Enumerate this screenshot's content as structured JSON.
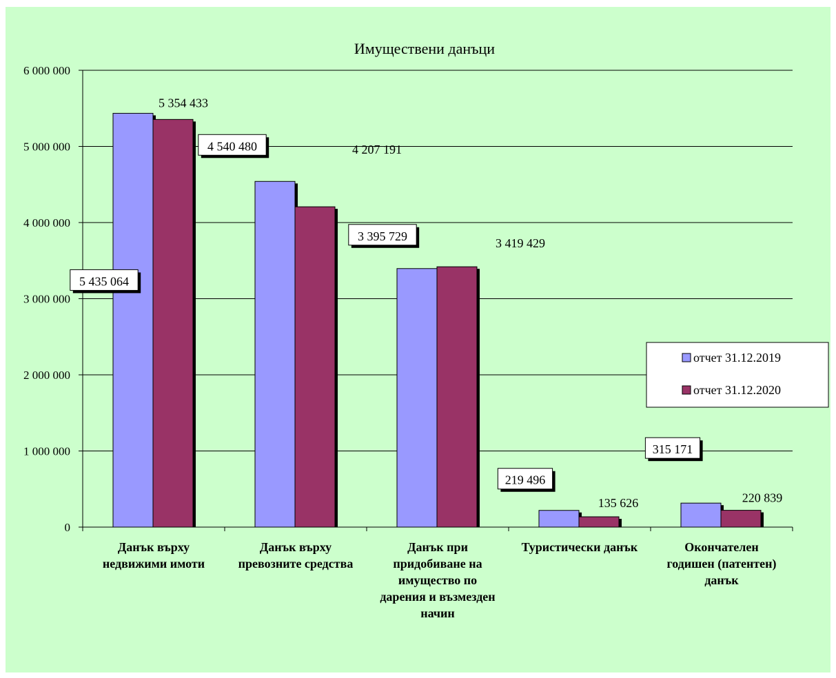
{
  "chart_data": {
    "type": "bar",
    "title": "Имуществени данъци",
    "categories": [
      [
        "Данък върху",
        "недвижими имоти"
      ],
      [
        "Данък върху",
        "превозните средства"
      ],
      [
        "Данък при",
        "придобиване на",
        "имущество по",
        "дарения и възмезден",
        "начин"
      ],
      [
        "Туристически данък"
      ],
      [
        "Окончателен",
        "годишен (патентен)",
        "данък"
      ]
    ],
    "series": [
      {
        "name": "отчет 31.12.2019",
        "color": "#9999ff",
        "values": [
          5435064,
          4540480,
          3395729,
          219496,
          315171
        ],
        "labels": [
          "5 435 064",
          "4 540 480",
          "3 395 729",
          "219 496",
          "315 171"
        ]
      },
      {
        "name": "отчет 31.12.2020",
        "color": "#993366",
        "values": [
          5354433,
          4207191,
          3419429,
          135626,
          220839
        ],
        "labels": [
          "5 354 433",
          "4 207 191",
          "3 419 429",
          "135 626",
          "220 839"
        ]
      }
    ],
    "ylim": [
      0,
      6000000
    ],
    "yticks": [
      0,
      1000000,
      2000000,
      3000000,
      4000000,
      5000000,
      6000000
    ],
    "ytick_labels": [
      "0",
      "1 000 000",
      "2 000 000",
      "3 000 000",
      "4 000 000",
      "5 000 000",
      "6 000 000"
    ],
    "grid": true,
    "legend_position": "right"
  }
}
